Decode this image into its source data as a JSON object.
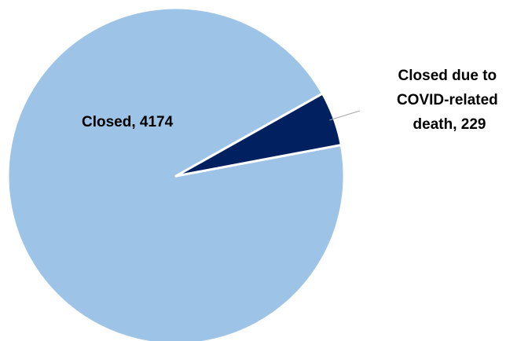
{
  "chart_data": {
    "type": "pie",
    "slices": [
      {
        "name": "Closed",
        "value": 4174,
        "label": "Closed, 4174",
        "color": "#9DC3E6"
      },
      {
        "name": "Closed due to COVID-related death",
        "value": 229,
        "label": "Closed due to COVID-related death, 229",
        "color": "#002060"
      }
    ],
    "title": "",
    "legend": "none",
    "data_labels": "category-and-value"
  }
}
